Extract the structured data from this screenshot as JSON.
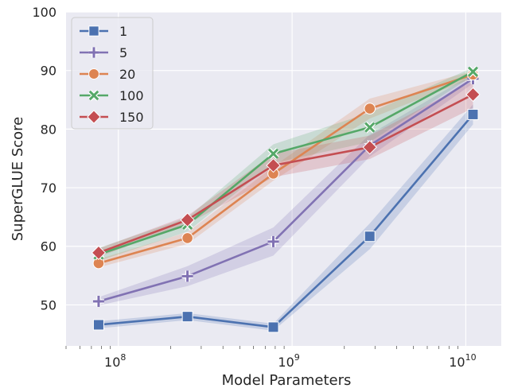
{
  "chart_data": {
    "type": "line",
    "title": "",
    "xlabel": "Model Parameters",
    "ylabel": "SuperGLUE Score",
    "xscale": "log",
    "xlim": [
      50000000,
      16000000000
    ],
    "ylim": [
      43,
      100
    ],
    "x": [
      77000000,
      250000000,
      780000000,
      2800000000,
      11000000000
    ],
    "x_ticks": [
      {
        "value": 100000000,
        "base": "10",
        "exp": "8"
      },
      {
        "value": 1000000000,
        "base": "10",
        "exp": "9"
      },
      {
        "value": 10000000000,
        "base": "10",
        "exp": "10"
      }
    ],
    "y_ticks": [
      50,
      60,
      70,
      80,
      90,
      100
    ],
    "grid": true,
    "background": "#eaeaf2",
    "legend_position": "top-left",
    "series": [
      {
        "name": "1",
        "color": "#4c72b0",
        "marker": "square",
        "values": [
          46.6,
          48.0,
          46.2,
          61.7,
          82.5
        ],
        "band_low": [
          46.0,
          47.4,
          45.6,
          59.5,
          80.8
        ],
        "band_high": [
          47.2,
          48.6,
          46.8,
          63.9,
          84.2
        ]
      },
      {
        "name": "5",
        "color": "#8172b3",
        "marker": "plus",
        "values": [
          50.6,
          54.9,
          60.8,
          77.2,
          88.6
        ],
        "band_low": [
          49.9,
          53.2,
          58.4,
          75.3,
          87.8
        ],
        "band_high": [
          51.3,
          56.6,
          63.2,
          79.1,
          89.4
        ]
      },
      {
        "name": "20",
        "color": "#dd8452",
        "marker": "circle",
        "values": [
          57.1,
          61.4,
          72.4,
          83.5,
          89.3
        ],
        "band_low": [
          56.4,
          60.4,
          71.2,
          81.8,
          88.7
        ],
        "band_high": [
          57.8,
          62.4,
          73.6,
          85.2,
          89.9
        ]
      },
      {
        "name": "100",
        "color": "#55a868",
        "marker": "x",
        "values": [
          58.6,
          63.7,
          75.8,
          80.3,
          89.8
        ],
        "band_low": [
          57.5,
          62.5,
          74.2,
          77.8,
          89.1
        ],
        "band_high": [
          59.7,
          64.9,
          77.4,
          82.8,
          90.5
        ]
      },
      {
        "name": "150",
        "color": "#c44e52",
        "marker": "diamond",
        "values": [
          58.9,
          64.5,
          73.8,
          76.9,
          85.9
        ],
        "band_low": [
          58.2,
          63.8,
          71.8,
          74.9,
          83.6
        ],
        "band_high": [
          59.6,
          65.2,
          75.8,
          78.9,
          88.2
        ]
      }
    ]
  }
}
